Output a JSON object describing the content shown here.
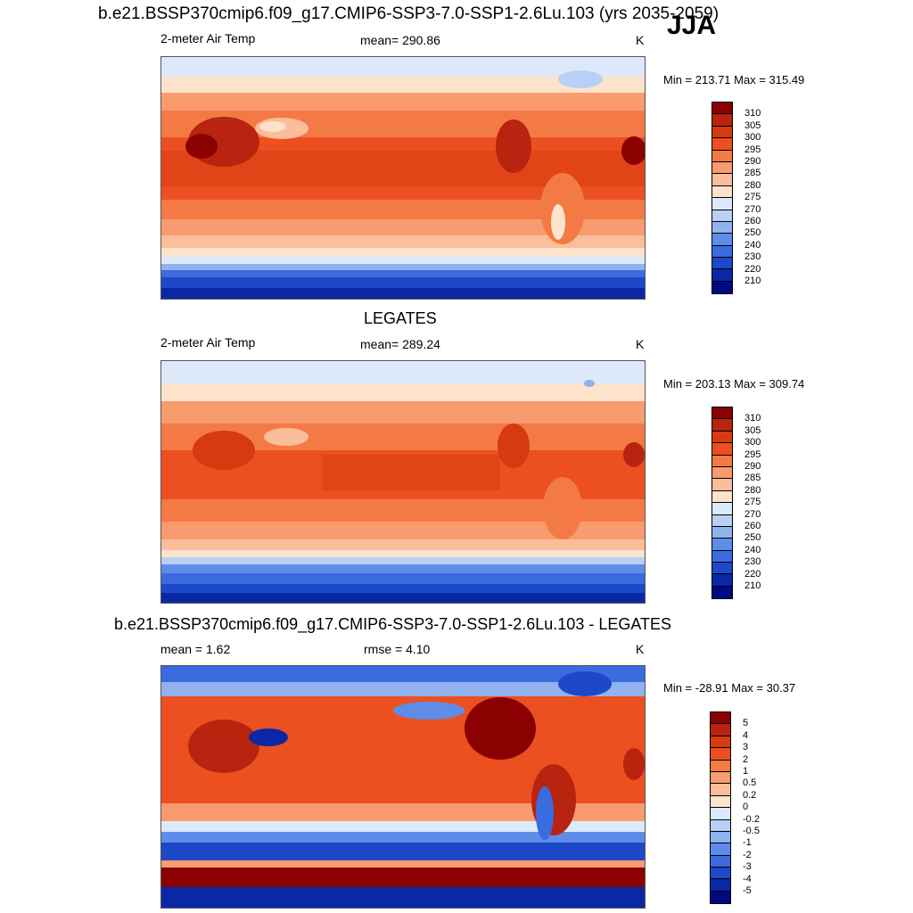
{
  "season": "JJA",
  "panels": [
    {
      "title": "b.e21.BSSP370cmip6.f09_g17.CMIP6-SSP3-7.0-SSP1-2.6Lu.103 (yrs 2035-2059)",
      "left_label": "2-meter Air Temp",
      "center_label": "mean= 290.86",
      "units": "K",
      "minmax": "Min = 213.71 Max = 315.49",
      "levels": [
        "310",
        "305",
        "300",
        "295",
        "290",
        "285",
        "280",
        "275",
        "270",
        "260",
        "250",
        "240",
        "230",
        "220",
        "210"
      ],
      "colors": [
        "#8b0000",
        "#b8240f",
        "#d83a10",
        "#ec5020",
        "#f47a45",
        "#f89b6e",
        "#fbbd9a",
        "#fde3cc",
        "#dce9fb",
        "#b8d0f6",
        "#90b3f0",
        "#5d8de8",
        "#3a6ce0",
        "#1d48c8",
        "#0a28a6",
        "#000a80"
      ],
      "mean_value": 290.86
    },
    {
      "title": "LEGATES",
      "left_label": "2-meter Air Temp",
      "center_label": "mean= 289.24",
      "units": "K",
      "minmax": "Min = 203.13 Max = 309.74",
      "levels": [
        "310",
        "305",
        "300",
        "295",
        "290",
        "285",
        "280",
        "275",
        "270",
        "260",
        "250",
        "240",
        "230",
        "220",
        "210"
      ],
      "colors": [
        "#8b0000",
        "#b8240f",
        "#d83a10",
        "#ec5020",
        "#f47a45",
        "#f89b6e",
        "#fbbd9a",
        "#fde3cc",
        "#dce9fb",
        "#b8d0f6",
        "#90b3f0",
        "#5d8de8",
        "#3a6ce0",
        "#1d48c8",
        "#0a28a6",
        "#000a80"
      ],
      "mean_value": 289.24
    },
    {
      "title": "b.e21.BSSP370cmip6.f09_g17.CMIP6-SSP3-7.0-SSP1-2.6Lu.103 - LEGATES",
      "left_label": "mean =   1.62",
      "center_label": "rmse =   4.10",
      "units": "K",
      "minmax": "Min = -28.91 Max =  30.37",
      "levels": [
        "5",
        "4",
        "3",
        "2",
        "1",
        "0.5",
        "0.2",
        "0",
        "-0.2",
        "-0.5",
        "-1",
        "-2",
        "-3",
        "-4",
        "-5"
      ],
      "colors": [
        "#8b0000",
        "#b8240f",
        "#d83a10",
        "#ec5020",
        "#f47a45",
        "#f89b6e",
        "#fbbd9a",
        "#fde3cc",
        "#dce9fb",
        "#b8d0f6",
        "#90b3f0",
        "#5d8de8",
        "#3a6ce0",
        "#1d48c8",
        "#0a28a6",
        "#000a80"
      ],
      "mean_value": 1.62
    }
  ]
}
